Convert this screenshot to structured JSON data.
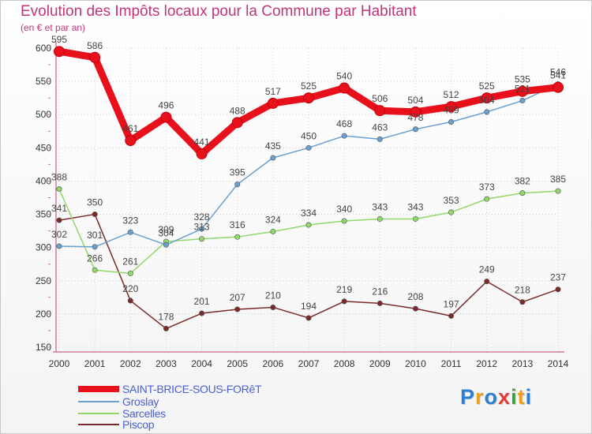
{
  "header": {
    "title": "Evolution des Impôts locaux pour la Commune par Habitant",
    "subtitle": "(en € et par an)"
  },
  "logo": {
    "text": "Proxiti",
    "colors": [
      "#2e7fd1",
      "#e8a020",
      "#2e7fd1",
      "#e53a3a",
      "#3aa03a",
      "#e8a020",
      "#2e7fd1"
    ]
  },
  "chart_data": {
    "type": "line",
    "x": [
      "2000",
      "2001",
      "2002",
      "2003",
      "2004",
      "2005",
      "2006",
      "2007",
      "2008",
      "2009",
      "2010",
      "2011",
      "2012",
      "2013",
      "2014"
    ],
    "ylim": [
      150,
      600
    ],
    "yticks": [
      150,
      200,
      250,
      300,
      350,
      400,
      450,
      500,
      550,
      600
    ],
    "grid": true,
    "legend_position": "bottom-left",
    "series": [
      {
        "name": "Piscop",
        "color": "#7a2a2a",
        "values": [
          341,
          350,
          220,
          178,
          201,
          207,
          210,
          194,
          219,
          216,
          208,
          197,
          249,
          218,
          237
        ]
      },
      {
        "name": "Sarcelles",
        "color": "#90d86a",
        "values": [
          388,
          266,
          261,
          309,
          313,
          316,
          324,
          334,
          340,
          343,
          343,
          353,
          373,
          382,
          385
        ]
      },
      {
        "name": "Groslay",
        "color": "#6aa0d0",
        "values": [
          302,
          301,
          323,
          304,
          328,
          395,
          435,
          450,
          468,
          463,
          478,
          489,
          504,
          521,
          546
        ]
      },
      {
        "name": "SAINT-BRICE-SOUS-FORêT",
        "color": "#e8101a",
        "values": [
          595,
          586,
          461,
          496,
          441,
          488,
          517,
          525,
          540,
          506,
          504,
          512,
          525,
          535,
          541
        ]
      }
    ]
  }
}
